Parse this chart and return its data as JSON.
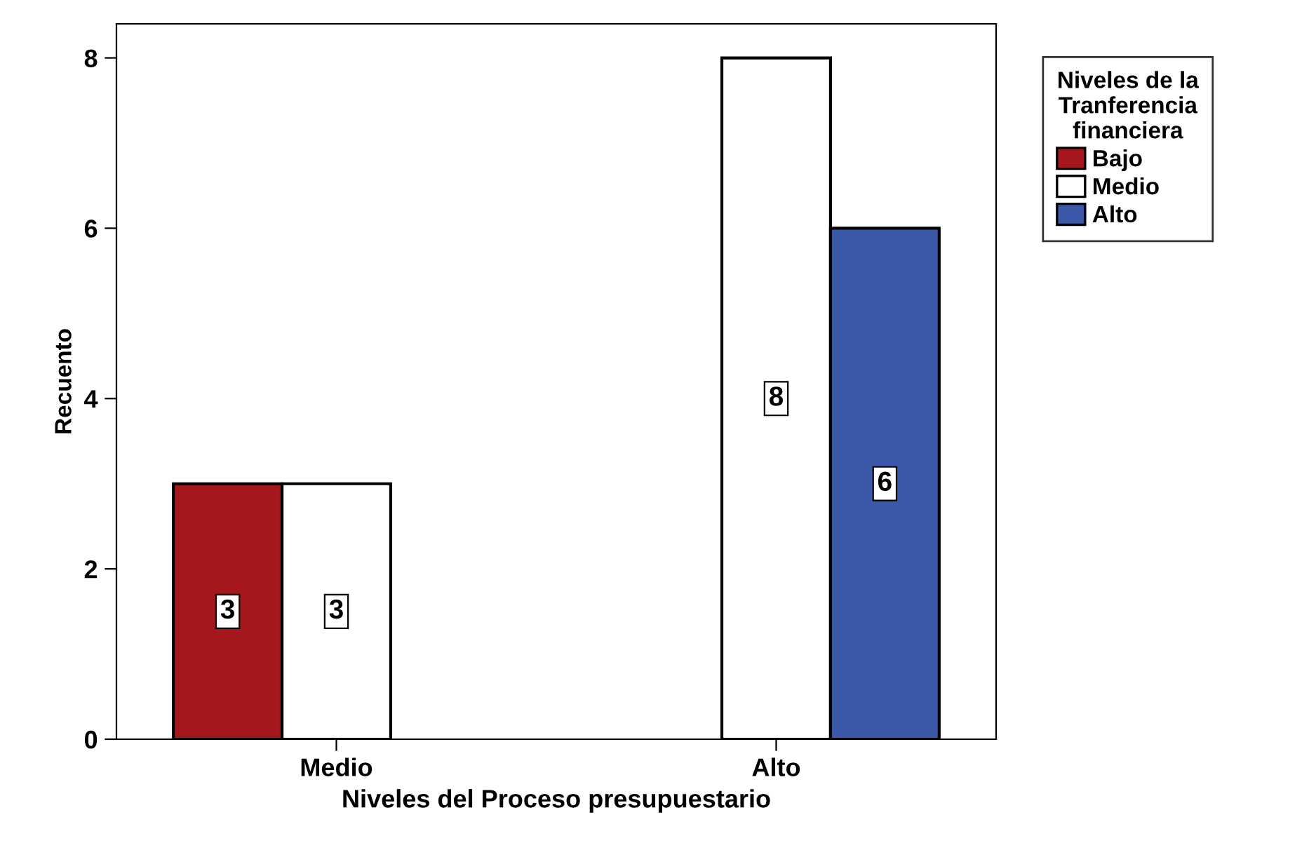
{
  "chart_data": {
    "type": "bar",
    "categories": [
      "Medio",
      "Alto"
    ],
    "series": [
      {
        "name": "Bajo",
        "color": "#a3171d",
        "values": [
          3,
          null
        ]
      },
      {
        "name": "Medio",
        "color": "#ffffff",
        "values": [
          3,
          8
        ]
      },
      {
        "name": "Alto",
        "color": "#3c58a8",
        "values": [
          null,
          6
        ]
      }
    ],
    "xlabel": "Niveles del Proceso presupuestario",
    "ylabel": "Recuento",
    "legend_title": "Niveles de la\nTranferencia\nfinanciera",
    "ylim": [
      0,
      8.4
    ],
    "yticks": [
      0,
      2,
      4,
      6,
      8
    ],
    "data_labels": true,
    "grid": false,
    "legend": "right"
  }
}
